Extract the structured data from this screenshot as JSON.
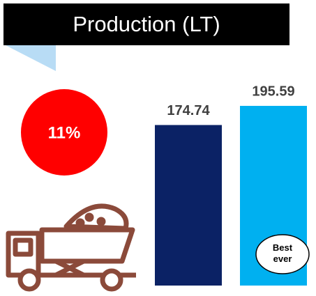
{
  "chart_data": {
    "type": "bar",
    "title": "Production (LT)",
    "categories": [
      null,
      null
    ],
    "series": [
      {
        "name": null,
        "values": [
          174.74,
          195.59
        ],
        "colors": [
          "#0b2265",
          "#00b0f0"
        ]
      }
    ],
    "badge": "11%",
    "callout": "Best ever"
  }
}
